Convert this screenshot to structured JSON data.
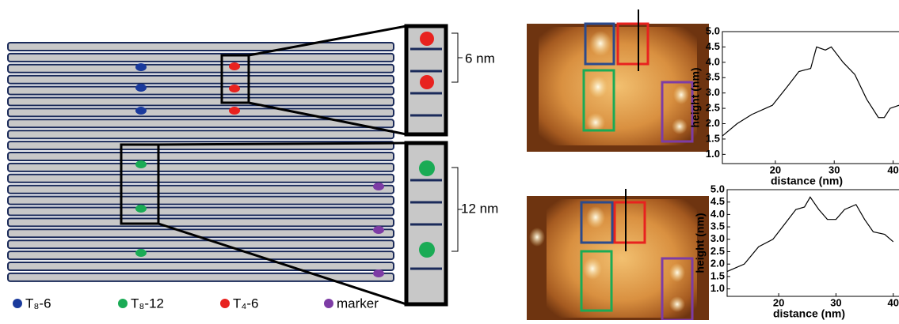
{
  "scale_labels": [
    "6 nm",
    "12 nm"
  ],
  "legend": [
    {
      "label": "T₈-6",
      "color": "#1a3a9c"
    },
    {
      "label": "T₈-12",
      "color": "#1aab55"
    },
    {
      "label": "T₄-6",
      "color": "#e8221f"
    },
    {
      "label": "marker",
      "color": "#7d3ca5"
    }
  ],
  "chart_data": [
    {
      "type": "line",
      "xlabel": "distance (nm)",
      "ylabel": "height (nm)",
      "color": "#000000",
      "x": [
        11,
        13.5,
        16,
        19.5,
        22,
        24,
        26,
        27,
        28.5,
        29.5,
        31.5,
        33.5,
        35.5,
        37.5,
        38.5,
        39.5,
        41
      ],
      "values": [
        1.6,
        2.0,
        2.3,
        2.6,
        3.2,
        3.7,
        3.8,
        4.5,
        4.4,
        4.5,
        4.0,
        3.6,
        2.8,
        2.2,
        2.2,
        2.5,
        2.6
      ],
      "xlim": [
        11,
        41
      ],
      "xticks": [
        20,
        30,
        40
      ],
      "ylim": [
        0.7,
        5.0
      ],
      "yticks": [
        {
          "value": 1,
          "label": "1.0"
        },
        {
          "value": 1.5,
          "label": "1.5"
        },
        {
          "value": 2,
          "label": "2.0"
        },
        {
          "value": 2.5,
          "label": "2.5"
        },
        {
          "value": 3,
          "label": "3.0"
        },
        {
          "value": 3.5,
          "label": "3.5"
        },
        {
          "value": 4,
          "label": "4.0"
        },
        {
          "value": 4.5,
          "label": "4.5"
        },
        {
          "value": 5,
          "label": "5.0"
        }
      ]
    },
    {
      "type": "line",
      "xlabel": "distance (nm)",
      "ylabel": "height (nm)",
      "color": "#000000",
      "x": [
        11,
        14,
        16.5,
        19,
        21,
        23,
        24.5,
        25.5,
        27,
        28.5,
        30,
        31.5,
        33.5,
        35,
        36.5,
        38.5,
        40
      ],
      "values": [
        1.7,
        2.0,
        2.7,
        3.0,
        3.6,
        4.2,
        4.3,
        4.7,
        4.2,
        3.8,
        3.8,
        4.2,
        4.4,
        3.8,
        3.3,
        3.2,
        2.9
      ],
      "xlim": [
        11,
        41
      ],
      "xticks": [
        20,
        30,
        40
      ],
      "ylim": [
        0.7,
        5.0
      ],
      "yticks": [
        {
          "value": 1,
          "label": "1.0"
        },
        {
          "value": 1.5,
          "label": "1.5"
        },
        {
          "value": 2,
          "label": "2.0"
        },
        {
          "value": 2.5,
          "label": "2.5"
        },
        {
          "value": 3,
          "label": "3.0"
        },
        {
          "value": 3.5,
          "label": "3.5"
        },
        {
          "value": 4,
          "label": "4.0"
        },
        {
          "value": 4.5,
          "label": "4.5"
        },
        {
          "value": 5,
          "label": "5.0"
        }
      ]
    }
  ]
}
